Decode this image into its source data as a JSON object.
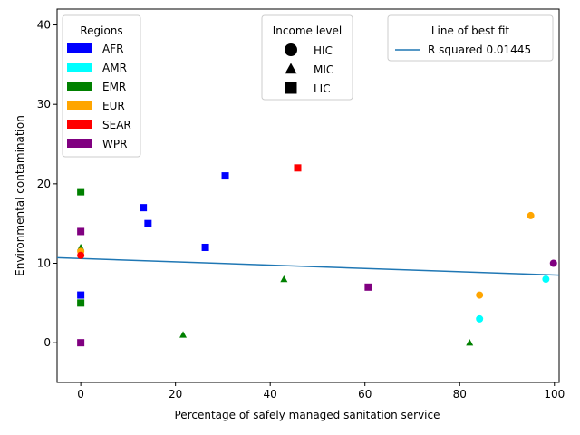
{
  "chart_data": {
    "type": "scatter",
    "xlabel": "Percentage of safely managed sanitation service",
    "ylabel": "Environmental contamination",
    "xlim": [
      -5,
      101
    ],
    "ylim": [
      -5,
      42
    ],
    "xticks": [
      0,
      20,
      40,
      60,
      80,
      100
    ],
    "yticks": [
      0,
      10,
      20,
      30,
      40
    ],
    "grid": false,
    "region_colors": {
      "AFR": "#0000ff",
      "AMR": "#00ffff",
      "EMR": "#008000",
      "EUR": "#ffa500",
      "SEAR": "#ff0000",
      "WPR": "#800080"
    },
    "legends": {
      "regions": {
        "title": "Regions",
        "placement": "upper-left",
        "items": [
          {
            "label": "AFR",
            "color": "#0000ff"
          },
          {
            "label": "AMR",
            "color": "#00ffff"
          },
          {
            "label": "EMR",
            "color": "#008000"
          },
          {
            "label": "EUR",
            "color": "#ffa500"
          },
          {
            "label": "SEAR",
            "color": "#ff0000"
          },
          {
            "label": "WPR",
            "color": "#800080"
          }
        ]
      },
      "income": {
        "title": "Income level",
        "placement": "upper-center",
        "items": [
          {
            "label": "HIC",
            "marker": "circle"
          },
          {
            "label": "MIC",
            "marker": "triangle"
          },
          {
            "label": "LIC",
            "marker": "square"
          }
        ]
      },
      "fit": {
        "title": "Line of best fit",
        "placement": "upper-right",
        "label": "R squared 0.01445",
        "color": "#1f77b4"
      }
    },
    "points": [
      {
        "x": 0,
        "y": 6,
        "region": "AFR",
        "income": "LIC"
      },
      {
        "x": 13.2,
        "y": 17,
        "region": "AFR",
        "income": "LIC"
      },
      {
        "x": 14.2,
        "y": 15,
        "region": "AFR",
        "income": "LIC"
      },
      {
        "x": 26.3,
        "y": 12,
        "region": "AFR",
        "income": "LIC"
      },
      {
        "x": 30.5,
        "y": 21,
        "region": "AFR",
        "income": "LIC"
      },
      {
        "x": 0,
        "y": 19,
        "region": "EMR",
        "income": "LIC"
      },
      {
        "x": 0,
        "y": 5,
        "region": "EMR",
        "income": "LIC"
      },
      {
        "x": 0,
        "y": 12,
        "region": "EMR",
        "income": "MIC"
      },
      {
        "x": 21.6,
        "y": 1,
        "region": "EMR",
        "income": "MIC"
      },
      {
        "x": 42.9,
        "y": 8,
        "region": "EMR",
        "income": "MIC"
      },
      {
        "x": 82.1,
        "y": 0,
        "region": "EMR",
        "income": "MIC"
      },
      {
        "x": 0,
        "y": 11.5,
        "region": "EUR",
        "income": "HIC"
      },
      {
        "x": 84.2,
        "y": 6,
        "region": "EUR",
        "income": "HIC"
      },
      {
        "x": 95,
        "y": 16,
        "region": "EUR",
        "income": "HIC"
      },
      {
        "x": 0,
        "y": 11,
        "region": "SEAR",
        "income": "HIC"
      },
      {
        "x": 45.8,
        "y": 22,
        "region": "SEAR",
        "income": "LIC"
      },
      {
        "x": 0,
        "y": 14,
        "region": "WPR",
        "income": "LIC"
      },
      {
        "x": 0,
        "y": 0,
        "region": "WPR",
        "income": "LIC"
      },
      {
        "x": 60.7,
        "y": 7,
        "region": "WPR",
        "income": "LIC"
      },
      {
        "x": 99.8,
        "y": 10,
        "region": "WPR",
        "income": "HIC"
      },
      {
        "x": 84.2,
        "y": 3,
        "region": "AMR",
        "income": "HIC"
      },
      {
        "x": 98.2,
        "y": 8,
        "region": "AMR",
        "income": "HIC"
      }
    ],
    "fit_line": {
      "x": [
        -5,
        101
      ],
      "y": [
        10.7,
        8.5
      ]
    }
  }
}
